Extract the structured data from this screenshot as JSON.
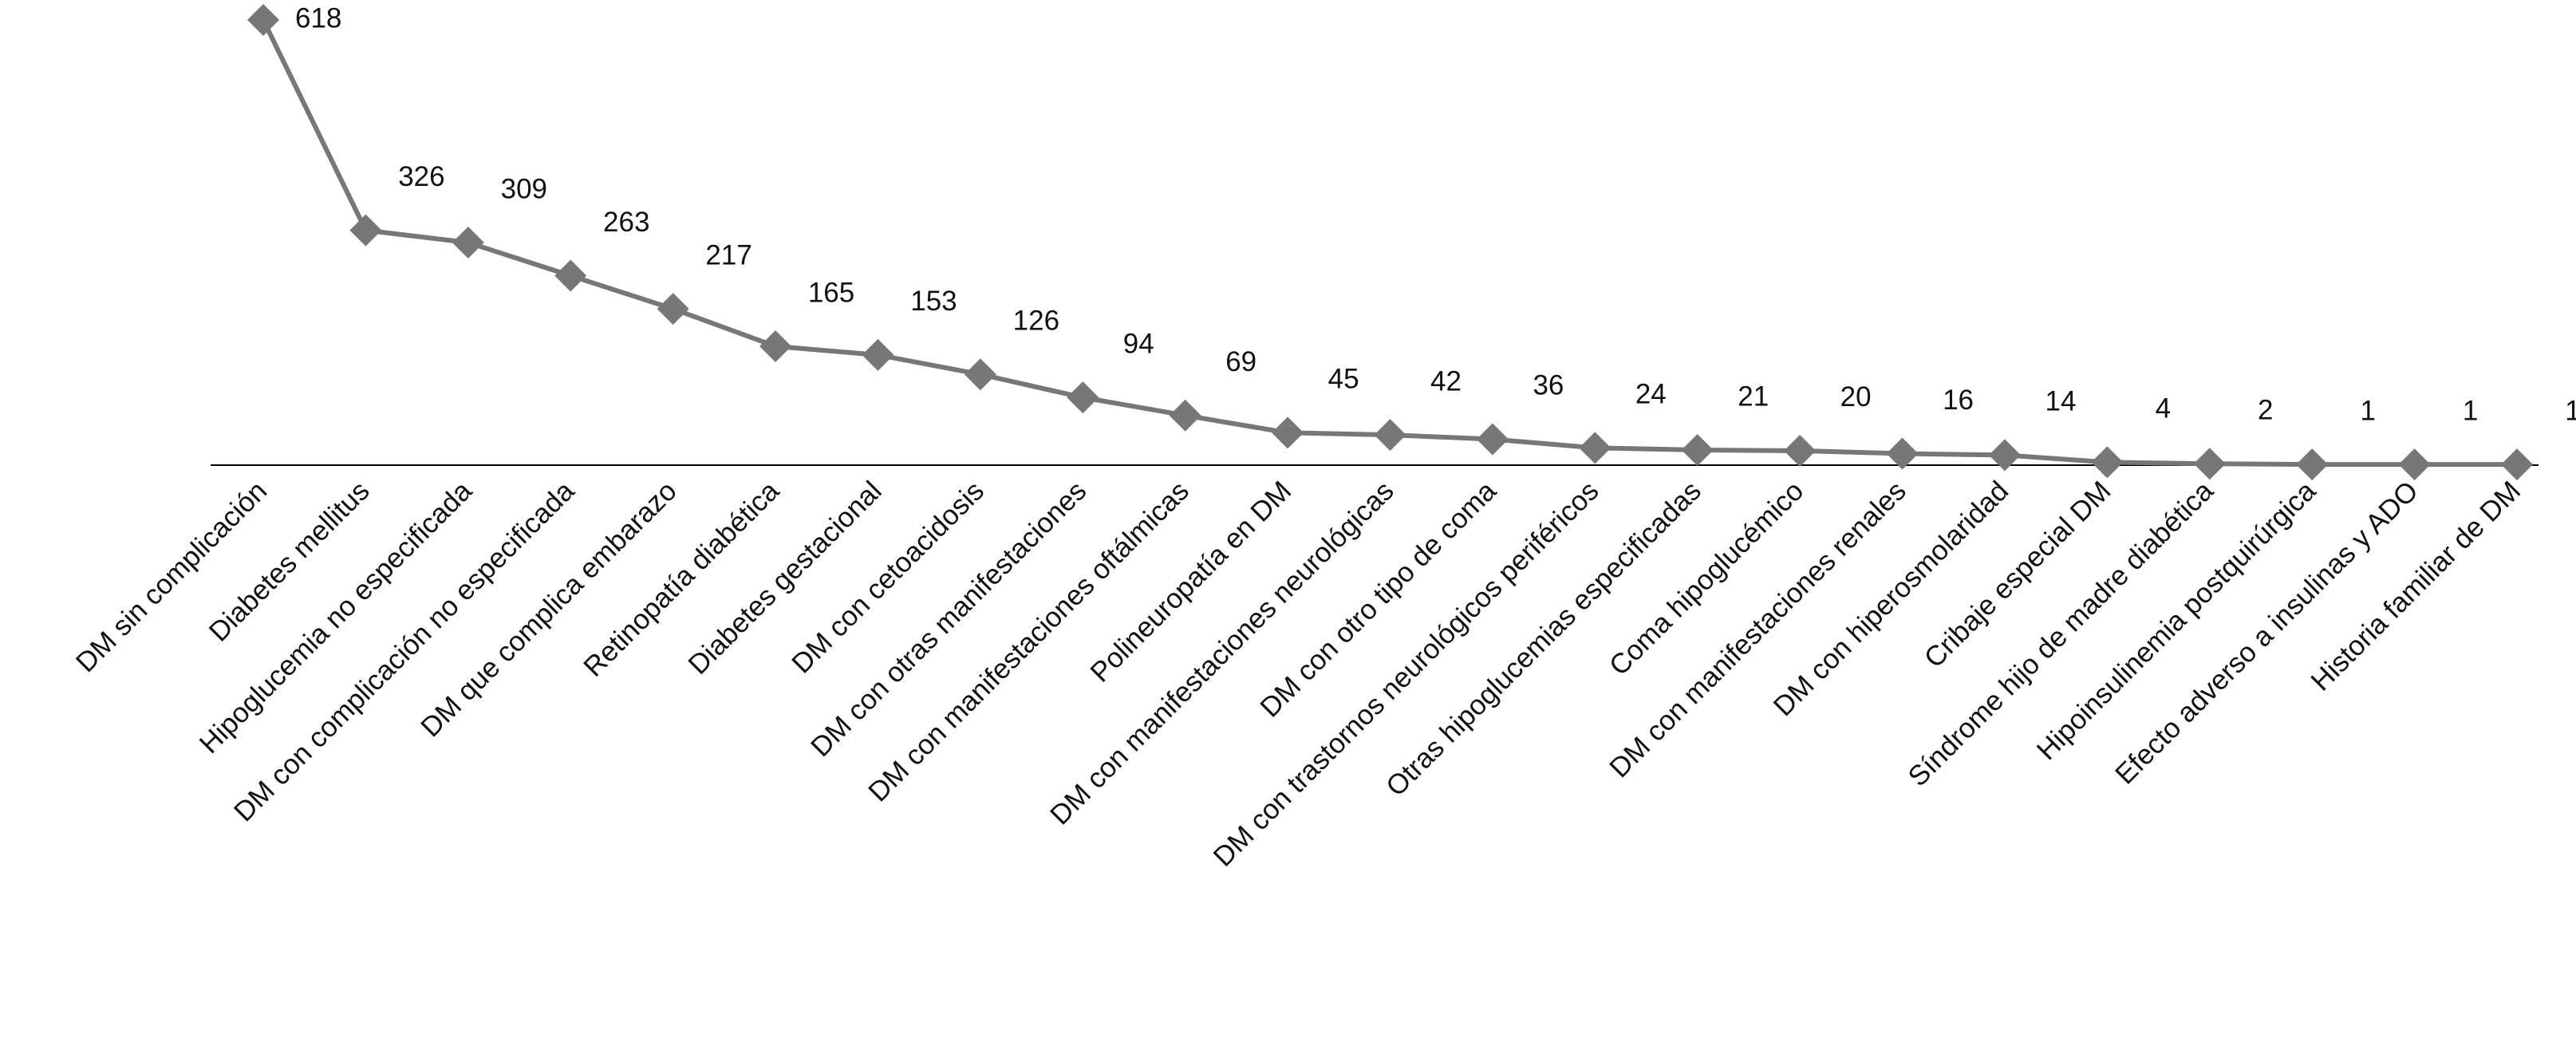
{
  "chart_data": {
    "type": "line",
    "categories": [
      "DM sin complicación",
      "Diabetes mellitus",
      "Hipoglucemia no especificada",
      "DM con complicación no especificada",
      "DM que complica embarazo",
      "Retinopatía diabética",
      "Diabetes gestacional",
      "DM con cetoacidosis",
      "DM con otras manifestaciones",
      "DM con manifestaciones oftálmicas",
      "Polineuropatía en DM",
      "DM con manifestaciones neurológicas",
      "DM con otro tipo de coma",
      "DM con trastornos neurológicos periféricos",
      "Otras hipoglucemias especificadas",
      "Coma hipoglucémico",
      "DM con manifestaciones renales",
      "DM con hiperosmolaridad",
      "Cribaje especial DM",
      "Síndrome hijo de madre diabética",
      "Hipoinsulinemia postquirúrgica",
      "Efecto adverso a insulinas y ADO",
      "Historia familiar de DM"
    ],
    "values": [
      618,
      326,
      309,
      263,
      217,
      165,
      153,
      126,
      94,
      69,
      45,
      42,
      36,
      24,
      21,
      20,
      16,
      14,
      4,
      2,
      1,
      1,
      1
    ],
    "color": "#777777"
  }
}
